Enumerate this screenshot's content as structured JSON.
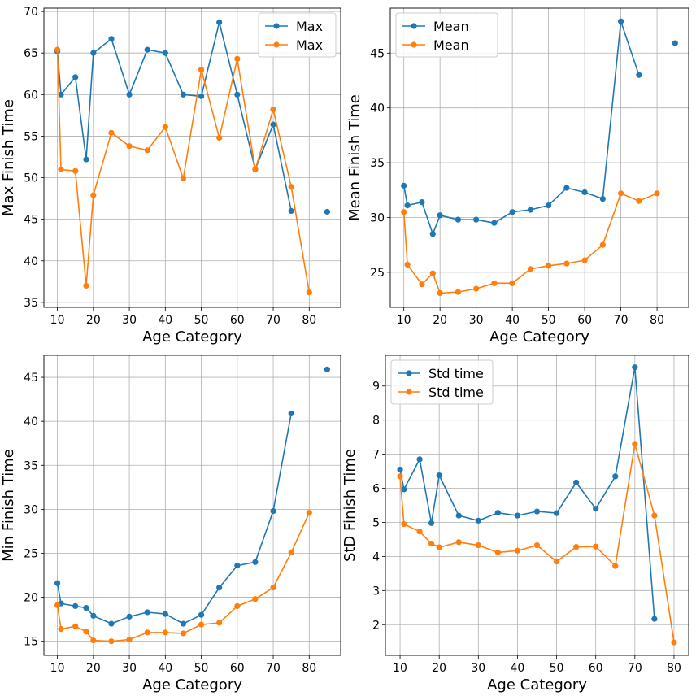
{
  "colors": {
    "series_1": "#1f77b4",
    "series_2": "#ff7f0e",
    "grid": "#b0b0b0",
    "frame": "#000000"
  },
  "chart_data": [
    {
      "type": "line",
      "xlabel": "Age Category",
      "ylabel": "Max Finish Time",
      "xlim": [
        6.25,
        88.75
      ],
      "ylim": [
        34.4,
        70.4
      ],
      "xticks": [
        10,
        20,
        30,
        40,
        50,
        60,
        70,
        80
      ],
      "yticks": [
        35,
        40,
        45,
        50,
        55,
        60,
        65,
        70
      ],
      "grid": true,
      "legend_position": "top-right",
      "series": [
        {
          "name": "Max",
          "color": "#1f77b4",
          "points": [
            [
              10,
              65.2
            ],
            [
              11,
              60.0
            ],
            [
              15,
              62.1
            ],
            [
              18,
              52.2
            ],
            [
              20,
              65.0
            ],
            [
              25,
              66.7
            ],
            [
              30,
              60.0
            ],
            [
              35,
              65.4
            ],
            [
              40,
              65.0
            ],
            [
              45,
              60.0
            ],
            [
              50,
              59.8
            ],
            [
              55,
              68.7
            ],
            [
              60,
              60.0
            ],
            [
              65,
              51.0
            ],
            [
              70,
              56.4
            ],
            [
              75,
              46.0
            ],
            [
              85,
              45.9
            ]
          ],
          "break_before_index": 16
        },
        {
          "name": "Max",
          "color": "#ff7f0e",
          "points": [
            [
              10,
              65.4
            ],
            [
              11,
              51.0
            ],
            [
              15,
              50.8
            ],
            [
              18,
              37.0
            ],
            [
              20,
              47.9
            ],
            [
              25,
              55.4
            ],
            [
              30,
              53.8
            ],
            [
              35,
              53.3
            ],
            [
              40,
              56.1
            ],
            [
              45,
              49.9
            ],
            [
              50,
              63.0
            ],
            [
              55,
              54.8
            ],
            [
              60,
              64.3
            ],
            [
              65,
              51.0
            ],
            [
              70,
              58.2
            ],
            [
              75,
              48.9
            ],
            [
              80,
              36.2
            ]
          ]
        }
      ]
    },
    {
      "type": "line",
      "xlabel": "Age Category",
      "ylabel": "Mean Finish Time",
      "xlim": [
        6.25,
        88.75
      ],
      "ylim": [
        21.8,
        49.1
      ],
      "xticks": [
        10,
        20,
        30,
        40,
        50,
        60,
        70,
        80
      ],
      "yticks": [
        25,
        30,
        35,
        40,
        45
      ],
      "grid": true,
      "legend_position": "top-left",
      "series": [
        {
          "name": "Mean",
          "color": "#1f77b4",
          "points": [
            [
              10,
              32.9
            ],
            [
              11,
              31.1
            ],
            [
              15,
              31.4
            ],
            [
              18,
              28.5
            ],
            [
              20,
              30.2
            ],
            [
              25,
              29.8
            ],
            [
              30,
              29.8
            ],
            [
              35,
              29.5
            ],
            [
              40,
              30.5
            ],
            [
              45,
              30.7
            ],
            [
              50,
              31.1
            ],
            [
              55,
              32.7
            ],
            [
              60,
              32.3
            ],
            [
              65,
              31.7
            ],
            [
              70,
              47.9
            ],
            [
              75,
              43.0
            ],
            [
              85,
              45.9
            ]
          ],
          "break_before_index": 16
        },
        {
          "name": "Mean",
          "color": "#ff7f0e",
          "points": [
            [
              10,
              30.5
            ],
            [
              11,
              25.7
            ],
            [
              15,
              23.9
            ],
            [
              18,
              24.9
            ],
            [
              20,
              23.1
            ],
            [
              25,
              23.2
            ],
            [
              30,
              23.5
            ],
            [
              35,
              24.0
            ],
            [
              40,
              24.0
            ],
            [
              45,
              25.3
            ],
            [
              50,
              25.6
            ],
            [
              55,
              25.8
            ],
            [
              60,
              26.1
            ],
            [
              65,
              27.5
            ],
            [
              70,
              32.2
            ],
            [
              75,
              31.5
            ],
            [
              80,
              32.2
            ]
          ]
        }
      ]
    },
    {
      "type": "line",
      "xlabel": "Age Category",
      "ylabel": "Min Finish Time",
      "xlim": [
        6.25,
        88.75
      ],
      "ylim": [
        13.4,
        47.5
      ],
      "xticks": [
        10,
        20,
        30,
        40,
        50,
        60,
        70,
        80
      ],
      "yticks": [
        15,
        20,
        25,
        30,
        35,
        40,
        45
      ],
      "grid": true,
      "legend_position": "none",
      "series": [
        {
          "color": "#1f77b4",
          "points": [
            [
              10,
              21.6
            ],
            [
              11,
              19.3
            ],
            [
              15,
              19.0
            ],
            [
              18,
              18.8
            ],
            [
              20,
              17.9
            ],
            [
              25,
              17.0
            ],
            [
              30,
              17.8
            ],
            [
              35,
              18.3
            ],
            [
              40,
              18.1
            ],
            [
              45,
              17.0
            ],
            [
              50,
              18.0
            ],
            [
              55,
              21.1
            ],
            [
              60,
              23.6
            ],
            [
              65,
              24.0
            ],
            [
              70,
              29.8
            ],
            [
              75,
              40.9
            ],
            [
              85,
              45.9
            ]
          ],
          "break_before_index": 16
        },
        {
          "color": "#ff7f0e",
          "points": [
            [
              10,
              19.1
            ],
            [
              11,
              16.4
            ],
            [
              15,
              16.7
            ],
            [
              18,
              16.1
            ],
            [
              20,
              15.1
            ],
            [
              25,
              15.0
            ],
            [
              30,
              15.2
            ],
            [
              35,
              16.0
            ],
            [
              40,
              16.0
            ],
            [
              45,
              15.9
            ],
            [
              50,
              16.9
            ],
            [
              55,
              17.1
            ],
            [
              60,
              19.0
            ],
            [
              65,
              19.8
            ],
            [
              70,
              21.1
            ],
            [
              75,
              25.1
            ],
            [
              80,
              29.6
            ]
          ]
        }
      ]
    },
    {
      "type": "line",
      "xlabel": "Age Category",
      "ylabel": "StD Finish Time",
      "xlim": [
        6.25,
        83.75
      ],
      "ylim": [
        1.1,
        9.9
      ],
      "xticks": [
        10,
        20,
        30,
        40,
        50,
        60,
        70,
        80
      ],
      "yticks": [
        2,
        3,
        4,
        5,
        6,
        7,
        8,
        9
      ],
      "grid": true,
      "legend_position": "top-left",
      "series": [
        {
          "name": "Std time",
          "color": "#1f77b4",
          "points": [
            [
              10,
              6.55
            ],
            [
              11,
              5.97
            ],
            [
              15,
              6.85
            ],
            [
              18,
              4.98
            ],
            [
              20,
              6.38
            ],
            [
              25,
              5.2
            ],
            [
              30,
              5.05
            ],
            [
              35,
              5.28
            ],
            [
              40,
              5.2
            ],
            [
              45,
              5.32
            ],
            [
              50,
              5.27
            ],
            [
              55,
              6.17
            ],
            [
              60,
              5.4
            ],
            [
              65,
              6.35
            ],
            [
              70,
              9.55
            ],
            [
              75,
              2.17
            ]
          ]
        },
        {
          "name": "Std time",
          "color": "#ff7f0e",
          "points": [
            [
              10,
              6.35
            ],
            [
              11,
              4.95
            ],
            [
              15,
              4.73
            ],
            [
              18,
              4.38
            ],
            [
              20,
              4.27
            ],
            [
              25,
              4.42
            ],
            [
              30,
              4.33
            ],
            [
              35,
              4.12
            ],
            [
              40,
              4.17
            ],
            [
              45,
              4.33
            ],
            [
              50,
              3.85
            ],
            [
              55,
              4.28
            ],
            [
              60,
              4.29
            ],
            [
              65,
              3.72
            ],
            [
              70,
              7.3
            ],
            [
              75,
              5.2
            ],
            [
              80,
              1.48
            ]
          ]
        }
      ]
    }
  ]
}
